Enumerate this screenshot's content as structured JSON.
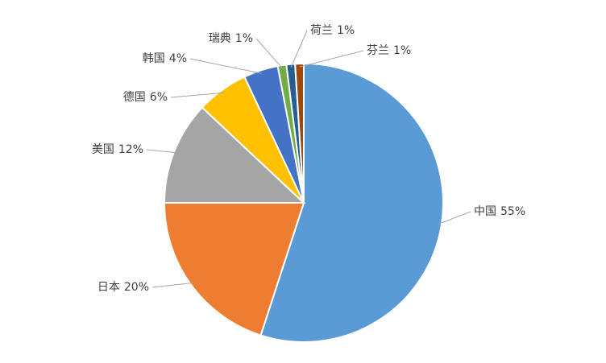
{
  "chart_data": {
    "type": "pie",
    "categories": [
      "中国",
      "日本",
      "美国",
      "德国",
      "韩国",
      "瑞典",
      "荷兰",
      "芬兰"
    ],
    "values": [
      55,
      20,
      12,
      6,
      4,
      1,
      1,
      1
    ],
    "value_labels": [
      "55%",
      "20%",
      "12%",
      "6%",
      "4%",
      "1%",
      "1%",
      "1%"
    ],
    "colors": [
      "#5b9bd5",
      "#ed7d31",
      "#a5a5a5",
      "#ffc000",
      "#4472c4",
      "#70ad47",
      "#255e91",
      "#9e480e"
    ]
  }
}
